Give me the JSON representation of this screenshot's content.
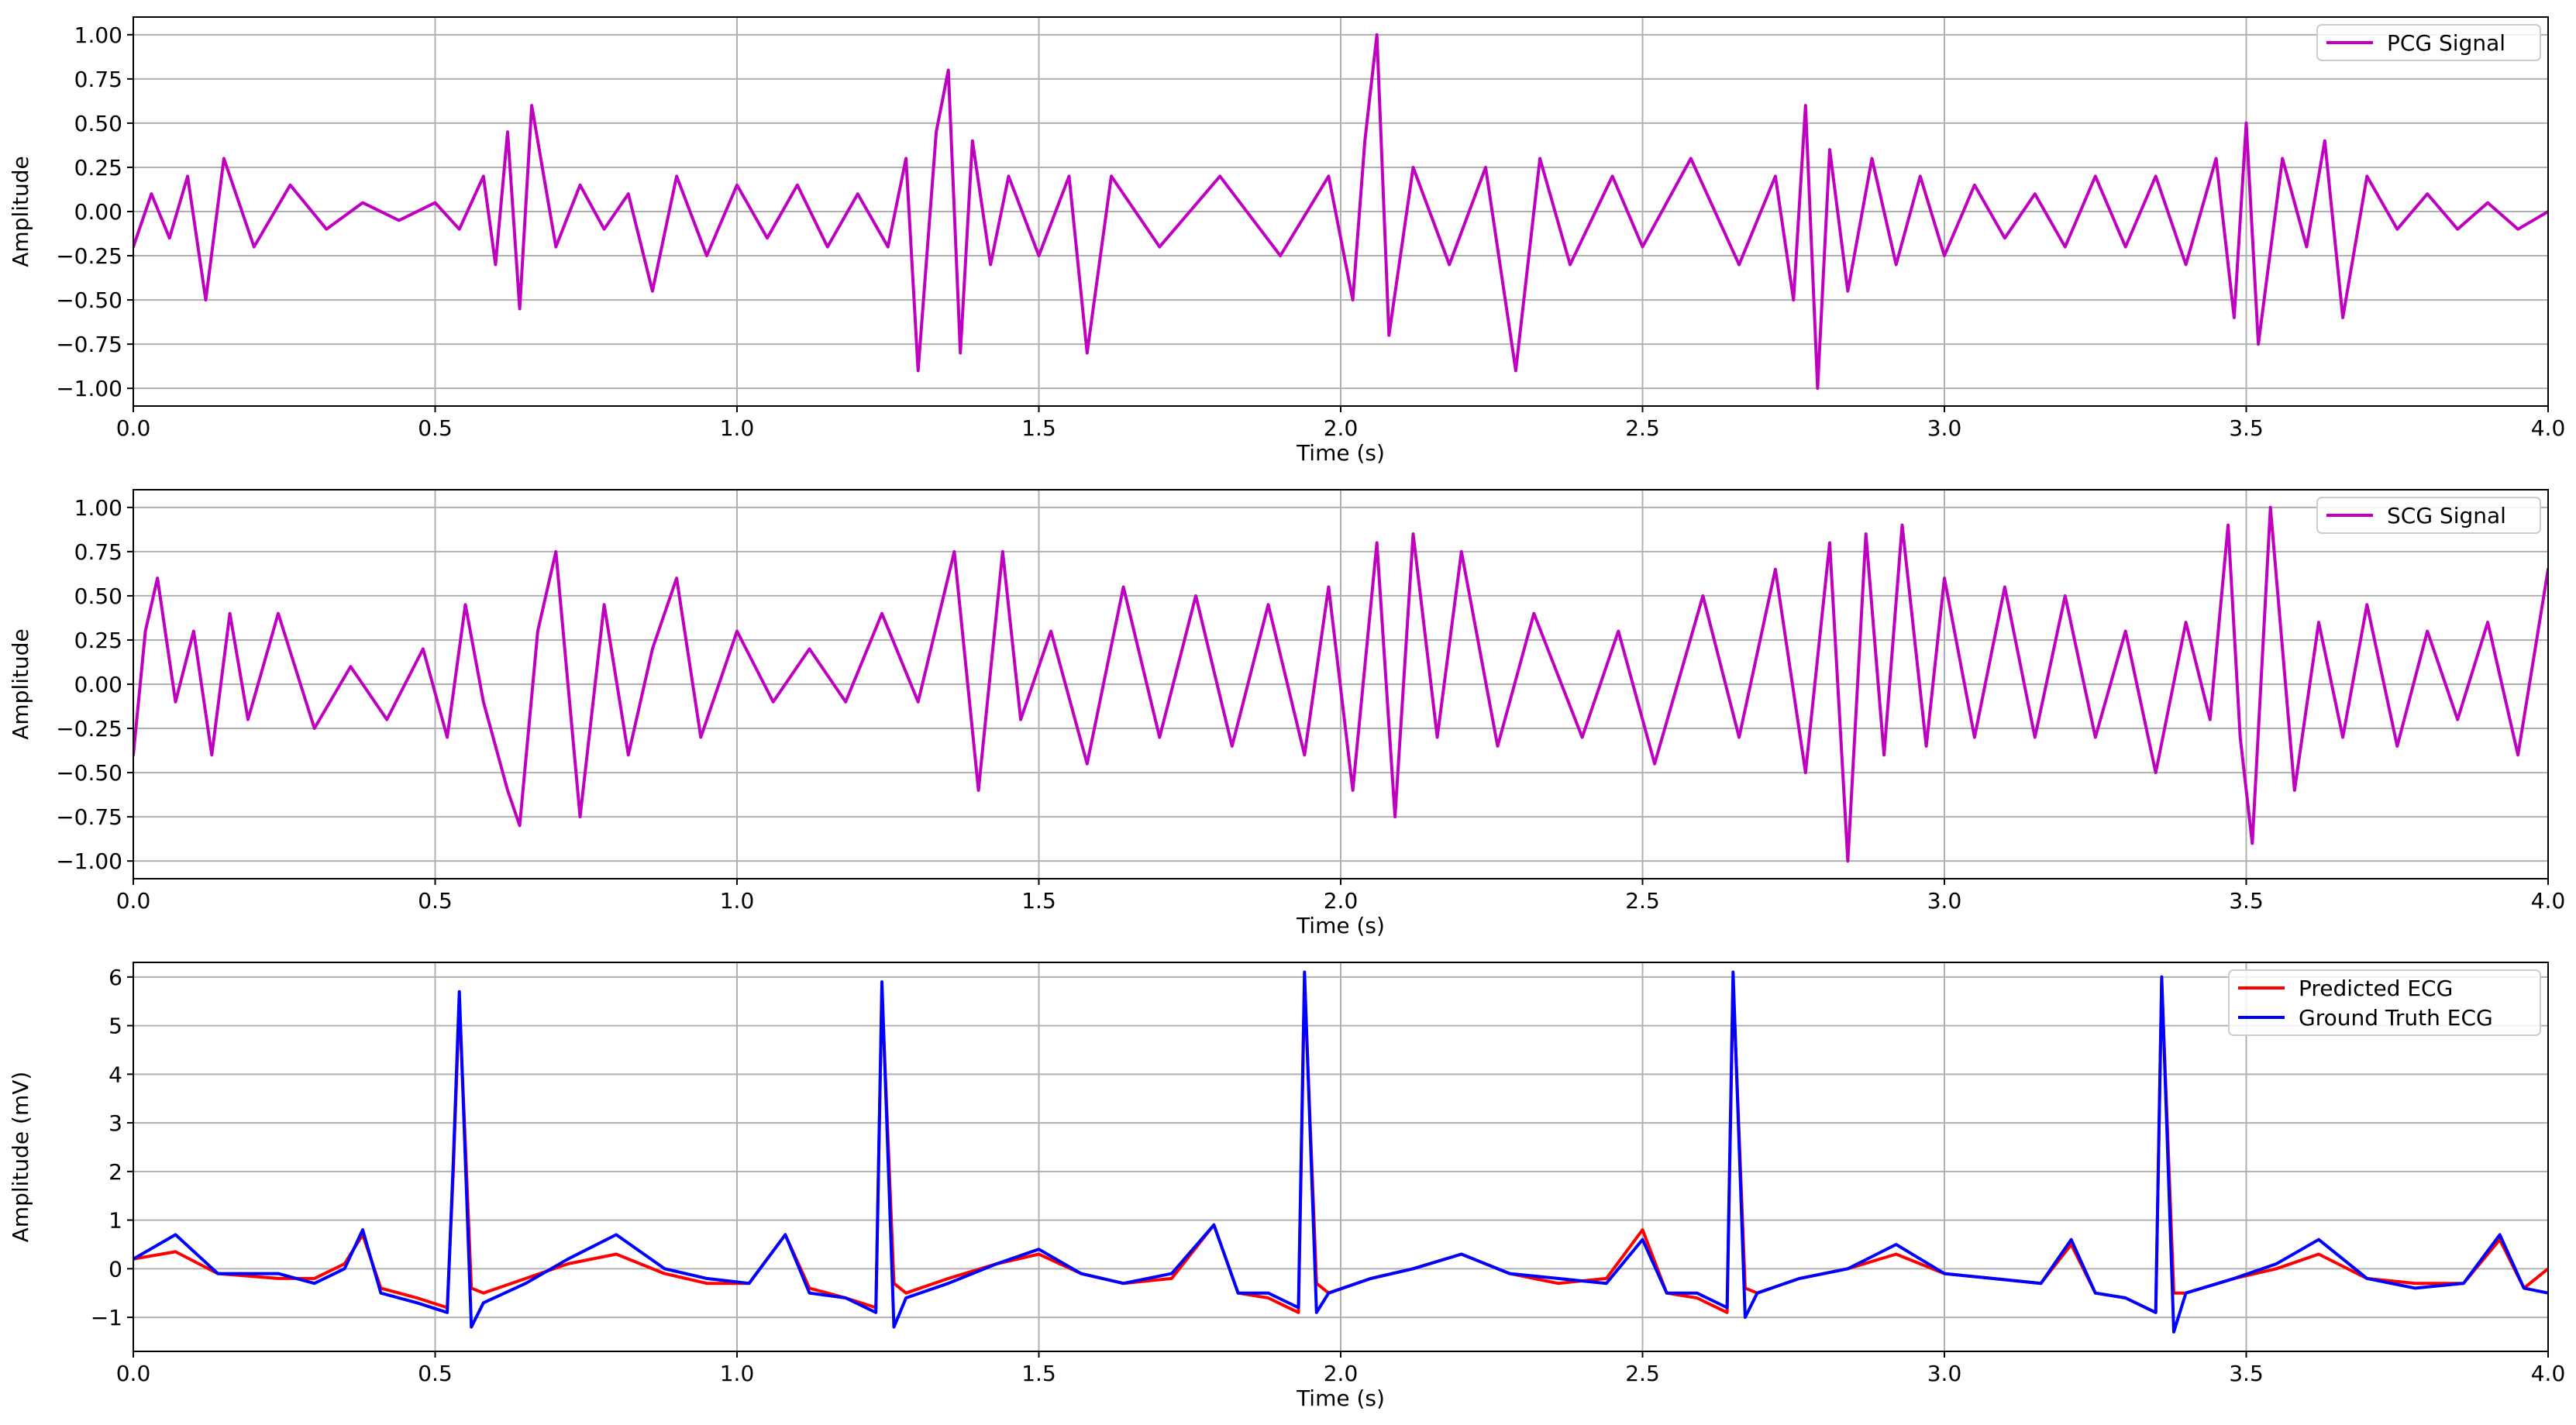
{
  "chart_data": [
    {
      "type": "line",
      "title": "",
      "xlabel": "Time (s)",
      "ylabel": "Amplitude",
      "xlim": [
        0,
        4
      ],
      "ylim": [
        -1.1,
        1.1
      ],
      "xticks": [
        0,
        0.5,
        1,
        1.5,
        2,
        2.5,
        3,
        3.5,
        4
      ],
      "xtick_labels": [
        "0.0",
        "0.5",
        "1.0",
        "1.5",
        "2.0",
        "2.5",
        "3.0",
        "3.5",
        "4.0"
      ],
      "yticks": [
        -1,
        -0.75,
        -0.5,
        -0.25,
        0,
        0.25,
        0.5,
        0.75,
        1
      ],
      "ytick_labels": [
        "−1.00",
        "−0.75",
        "−0.50",
        "−0.25",
        "0.00",
        "0.25",
        "0.50",
        "0.75",
        "1.00"
      ],
      "grid": true,
      "legend": "top-right",
      "series": [
        {
          "name": "PCG Signal",
          "color": "#c000c0",
          "x": [
            0.0,
            0.03,
            0.06,
            0.09,
            0.12,
            0.15,
            0.2,
            0.26,
            0.32,
            0.38,
            0.44,
            0.5,
            0.54,
            0.58,
            0.6,
            0.62,
            0.64,
            0.66,
            0.7,
            0.74,
            0.78,
            0.82,
            0.86,
            0.9,
            0.95,
            1.0,
            1.05,
            1.1,
            1.15,
            1.2,
            1.25,
            1.28,
            1.3,
            1.33,
            1.35,
            1.37,
            1.39,
            1.42,
            1.45,
            1.5,
            1.55,
            1.58,
            1.62,
            1.7,
            1.8,
            1.9,
            1.98,
            2.02,
            2.04,
            2.06,
            2.08,
            2.12,
            2.18,
            2.24,
            2.29,
            2.33,
            2.38,
            2.45,
            2.5,
            2.58,
            2.66,
            2.72,
            2.75,
            2.77,
            2.79,
            2.81,
            2.84,
            2.88,
            2.92,
            2.96,
            3.0,
            3.05,
            3.1,
            3.15,
            3.2,
            3.25,
            3.3,
            3.35,
            3.4,
            3.45,
            3.48,
            3.5,
            3.52,
            3.56,
            3.6,
            3.63,
            3.66,
            3.7,
            3.75,
            3.8,
            3.85,
            3.9,
            3.95,
            4.0
          ],
          "y": [
            -0.2,
            0.1,
            -0.15,
            0.2,
            -0.5,
            0.3,
            -0.2,
            0.15,
            -0.1,
            0.05,
            -0.05,
            0.05,
            -0.1,
            0.2,
            -0.3,
            0.45,
            -0.55,
            0.6,
            -0.2,
            0.15,
            -0.1,
            0.1,
            -0.45,
            0.2,
            -0.25,
            0.15,
            -0.15,
            0.15,
            -0.2,
            0.1,
            -0.2,
            0.3,
            -0.9,
            0.45,
            0.8,
            -0.8,
            0.4,
            -0.3,
            0.2,
            -0.25,
            0.2,
            -0.8,
            0.2,
            -0.2,
            0.2,
            -0.25,
            0.2,
            -0.5,
            0.4,
            1.0,
            -0.7,
            0.25,
            -0.3,
            0.25,
            -0.9,
            0.3,
            -0.3,
            0.2,
            -0.2,
            0.3,
            -0.3,
            0.2,
            -0.5,
            0.6,
            -1.0,
            0.35,
            -0.45,
            0.3,
            -0.3,
            0.2,
            -0.25,
            0.15,
            -0.15,
            0.1,
            -0.2,
            0.2,
            -0.2,
            0.2,
            -0.3,
            0.3,
            -0.6,
            0.5,
            -0.75,
            0.3,
            -0.2,
            0.4,
            -0.6,
            0.2,
            -0.1,
            0.1,
            -0.1,
            0.05,
            -0.1,
            0.0
          ]
        }
      ]
    },
    {
      "type": "line",
      "title": "",
      "xlabel": "Time (s)",
      "ylabel": "Amplitude",
      "xlim": [
        0,
        4
      ],
      "ylim": [
        -1.1,
        1.1
      ],
      "xticks": [
        0,
        0.5,
        1,
        1.5,
        2,
        2.5,
        3,
        3.5,
        4
      ],
      "xtick_labels": [
        "0.0",
        "0.5",
        "1.0",
        "1.5",
        "2.0",
        "2.5",
        "3.0",
        "3.5",
        "4.0"
      ],
      "yticks": [
        -1,
        -0.75,
        -0.5,
        -0.25,
        0,
        0.25,
        0.5,
        0.75,
        1
      ],
      "ytick_labels": [
        "−1.00",
        "−0.75",
        "−0.50",
        "−0.25",
        "0.00",
        "0.25",
        "0.50",
        "0.75",
        "1.00"
      ],
      "grid": true,
      "legend": "top-right",
      "series": [
        {
          "name": "SCG Signal",
          "color": "#c000c0",
          "x": [
            0.0,
            0.02,
            0.04,
            0.07,
            0.1,
            0.13,
            0.16,
            0.19,
            0.24,
            0.3,
            0.36,
            0.42,
            0.48,
            0.52,
            0.55,
            0.58,
            0.62,
            0.64,
            0.67,
            0.7,
            0.74,
            0.78,
            0.82,
            0.86,
            0.9,
            0.94,
            1.0,
            1.06,
            1.12,
            1.18,
            1.24,
            1.3,
            1.36,
            1.4,
            1.44,
            1.47,
            1.52,
            1.58,
            1.64,
            1.7,
            1.76,
            1.82,
            1.88,
            1.94,
            1.98,
            2.02,
            2.06,
            2.09,
            2.12,
            2.16,
            2.2,
            2.26,
            2.32,
            2.4,
            2.46,
            2.52,
            2.6,
            2.66,
            2.72,
            2.77,
            2.81,
            2.84,
            2.87,
            2.9,
            2.93,
            2.97,
            3.0,
            3.05,
            3.1,
            3.15,
            3.2,
            3.25,
            3.3,
            3.35,
            3.4,
            3.44,
            3.47,
            3.49,
            3.51,
            3.54,
            3.58,
            3.62,
            3.66,
            3.7,
            3.75,
            3.8,
            3.85,
            3.9,
            3.95,
            4.0
          ],
          "y": [
            -0.4,
            0.3,
            0.6,
            -0.1,
            0.3,
            -0.4,
            0.4,
            -0.2,
            0.4,
            -0.25,
            0.1,
            -0.2,
            0.2,
            -0.3,
            0.45,
            -0.1,
            -0.6,
            -0.8,
            0.3,
            0.75,
            -0.75,
            0.45,
            -0.4,
            0.2,
            0.6,
            -0.3,
            0.3,
            -0.1,
            0.2,
            -0.1,
            0.4,
            -0.1,
            0.75,
            -0.6,
            0.75,
            -0.2,
            0.3,
            -0.45,
            0.55,
            -0.3,
            0.5,
            -0.35,
            0.45,
            -0.4,
            0.55,
            -0.6,
            0.8,
            -0.75,
            0.85,
            -0.3,
            0.75,
            -0.35,
            0.4,
            -0.3,
            0.3,
            -0.45,
            0.5,
            -0.3,
            0.65,
            -0.5,
            0.8,
            -1.0,
            0.85,
            -0.4,
            0.9,
            -0.35,
            0.6,
            -0.3,
            0.55,
            -0.3,
            0.5,
            -0.3,
            0.3,
            -0.5,
            0.35,
            -0.2,
            0.9,
            -0.3,
            -0.9,
            1.0,
            -0.6,
            0.35,
            -0.3,
            0.45,
            -0.35,
            0.3,
            -0.2,
            0.35,
            -0.4,
            0.65
          ]
        }
      ]
    },
    {
      "type": "line",
      "title": "",
      "xlabel": "Time (s)",
      "ylabel": "Amplitude (mV)",
      "xlim": [
        0,
        4
      ],
      "ylim": [
        -1.7,
        6.3
      ],
      "xticks": [
        0,
        0.5,
        1,
        1.5,
        2,
        2.5,
        3,
        3.5,
        4
      ],
      "xtick_labels": [
        "0.0",
        "0.5",
        "1.0",
        "1.5",
        "2.0",
        "2.5",
        "3.0",
        "3.5",
        "4.0"
      ],
      "yticks": [
        -1,
        0,
        1,
        2,
        3,
        4,
        5,
        6
      ],
      "ytick_labels": [
        "−1",
        "0",
        "1",
        "2",
        "3",
        "4",
        "5",
        "6"
      ],
      "grid": true,
      "legend": "top-right",
      "series": [
        {
          "name": "Predicted ECG",
          "color": "#ff0000",
          "x": [
            0.0,
            0.07,
            0.14,
            0.24,
            0.3,
            0.35,
            0.38,
            0.41,
            0.47,
            0.52,
            0.53,
            0.54,
            0.56,
            0.58,
            0.65,
            0.72,
            0.8,
            0.88,
            0.95,
            1.02,
            1.08,
            1.12,
            1.18,
            1.23,
            1.24,
            1.26,
            1.28,
            1.35,
            1.43,
            1.5,
            1.57,
            1.64,
            1.72,
            1.79,
            1.83,
            1.88,
            1.93,
            1.94,
            1.96,
            1.98,
            2.05,
            2.12,
            2.2,
            2.28,
            2.36,
            2.44,
            2.5,
            2.54,
            2.59,
            2.64,
            2.65,
            2.67,
            2.69,
            2.76,
            2.84,
            2.92,
            3.0,
            3.08,
            3.16,
            3.21,
            3.25,
            3.3,
            3.35,
            3.36,
            3.38,
            3.4,
            3.48,
            3.55,
            3.62,
            3.7,
            3.78,
            3.86,
            3.92,
            3.96,
            4.0
          ],
          "y": [
            0.2,
            0.35,
            -0.1,
            -0.2,
            -0.2,
            0.1,
            0.7,
            -0.4,
            -0.6,
            -0.8,
            2.0,
            5.5,
            -0.4,
            -0.5,
            -0.2,
            0.1,
            0.3,
            -0.1,
            -0.3,
            -0.3,
            0.7,
            -0.4,
            -0.6,
            -0.8,
            5.7,
            -0.3,
            -0.5,
            -0.2,
            0.1,
            0.3,
            -0.1,
            -0.3,
            -0.2,
            0.9,
            -0.5,
            -0.6,
            -0.9,
            5.9,
            -0.3,
            -0.5,
            -0.2,
            0.0,
            0.3,
            -0.1,
            -0.3,
            -0.2,
            0.8,
            -0.5,
            -0.6,
            -0.9,
            5.9,
            -0.4,
            -0.5,
            -0.2,
            0.0,
            0.3,
            -0.1,
            -0.2,
            -0.3,
            0.5,
            -0.5,
            -0.6,
            -0.9,
            5.9,
            -0.5,
            -0.5,
            -0.2,
            0.0,
            0.3,
            -0.2,
            -0.3,
            -0.3,
            0.6,
            -0.4,
            0.0
          ]
        },
        {
          "name": "Ground Truth ECG",
          "color": "#0000ff",
          "x": [
            0.0,
            0.07,
            0.14,
            0.24,
            0.3,
            0.35,
            0.38,
            0.41,
            0.47,
            0.52,
            0.53,
            0.54,
            0.56,
            0.58,
            0.65,
            0.72,
            0.8,
            0.88,
            0.95,
            1.02,
            1.08,
            1.12,
            1.18,
            1.23,
            1.24,
            1.26,
            1.28,
            1.35,
            1.43,
            1.5,
            1.57,
            1.64,
            1.72,
            1.79,
            1.83,
            1.88,
            1.93,
            1.94,
            1.96,
            1.98,
            2.05,
            2.12,
            2.2,
            2.28,
            2.36,
            2.44,
            2.5,
            2.54,
            2.59,
            2.64,
            2.65,
            2.67,
            2.69,
            2.76,
            2.84,
            2.92,
            3.0,
            3.08,
            3.16,
            3.21,
            3.25,
            3.3,
            3.35,
            3.36,
            3.38,
            3.4,
            3.48,
            3.55,
            3.62,
            3.7,
            3.78,
            3.86,
            3.92,
            3.96,
            4.0
          ],
          "y": [
            0.2,
            0.7,
            -0.1,
            -0.1,
            -0.3,
            0.0,
            0.8,
            -0.5,
            -0.7,
            -0.9,
            2.2,
            5.7,
            -1.2,
            -0.7,
            -0.3,
            0.2,
            0.7,
            0.0,
            -0.2,
            -0.3,
            0.7,
            -0.5,
            -0.6,
            -0.9,
            5.9,
            -1.2,
            -0.6,
            -0.3,
            0.1,
            0.4,
            -0.1,
            -0.3,
            -0.1,
            0.9,
            -0.5,
            -0.5,
            -0.8,
            6.1,
            -0.9,
            -0.5,
            -0.2,
            0.0,
            0.3,
            -0.1,
            -0.2,
            -0.3,
            0.6,
            -0.5,
            -0.5,
            -0.8,
            6.1,
            -1.0,
            -0.5,
            -0.2,
            0.0,
            0.5,
            -0.1,
            -0.2,
            -0.3,
            0.6,
            -0.5,
            -0.6,
            -0.9,
            6.0,
            -1.3,
            -0.5,
            -0.2,
            0.1,
            0.6,
            -0.2,
            -0.4,
            -0.3,
            0.7,
            -0.4,
            -0.5
          ]
        }
      ]
    }
  ]
}
